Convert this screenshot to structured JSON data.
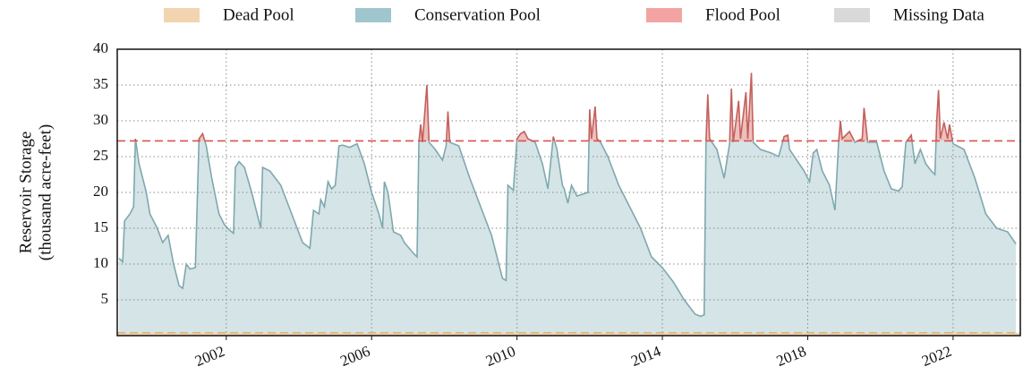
{
  "chart_data": {
    "type": "area",
    "ylabel": [
      "Reservoir Storage",
      "(thousand acre-feet)"
    ],
    "legend": [
      {
        "name": "Dead Pool",
        "color": "#f3d4b0"
      },
      {
        "name": "Conservation Pool",
        "color": "#9fc6cc"
      },
      {
        "name": "Flood Pool",
        "color": "#f4a3a3"
      },
      {
        "name": "Missing Data",
        "color": "#d9d9d9"
      }
    ],
    "fill_color": "#d5e4e7",
    "line_color": "#7ea8ae",
    "flood_fill_color": "#eec0bd",
    "flood_line_color": "#c4605c",
    "flood_pool_level": 27.2,
    "dead_pool_level": 0.4,
    "x": [
      1999.05,
      1999.15,
      1999.2,
      1999.35,
      1999.45,
      1999.5,
      1999.6,
      1999.8,
      1999.9,
      2000.1,
      2000.25,
      2000.4,
      2000.55,
      2000.7,
      2000.8,
      2000.9,
      2001.0,
      2001.15,
      2001.25,
      2001.35,
      2001.45,
      2001.6,
      2001.8,
      2001.95,
      2002.1,
      2002.2,
      2002.25,
      2002.35,
      2002.5,
      2002.7,
      2002.9,
      2002.95,
      2003.0,
      2003.2,
      2003.5,
      2003.8,
      2004.1,
      2004.3,
      2004.4,
      2004.55,
      2004.6,
      2004.7,
      2004.8,
      2004.9,
      2005.0,
      2005.1,
      2005.2,
      2005.4,
      2005.6,
      2005.8,
      2006.0,
      2006.2,
      2006.3,
      2006.35,
      2006.45,
      2006.6,
      2006.8,
      2006.9,
      2007.15,
      2007.25,
      2007.3,
      2007.35,
      2007.4,
      2007.52,
      2007.58,
      2007.75,
      2007.95,
      2008.05,
      2008.1,
      2008.15,
      2008.4,
      2008.7,
      2009.0,
      2009.3,
      2009.5,
      2009.6,
      2009.7,
      2009.75,
      2009.9,
      2010.0,
      2010.1,
      2010.2,
      2010.3,
      2010.5,
      2010.7,
      2010.85,
      2011.0,
      2011.1,
      2011.25,
      2011.3,
      2011.4,
      2011.5,
      2011.65,
      2011.95,
      2012.0,
      2012.05,
      2012.15,
      2012.2,
      2012.3,
      2012.5,
      2012.8,
      2013.1,
      2013.4,
      2013.7,
      2014.0,
      2014.3,
      2014.6,
      2014.9,
      2015.05,
      2015.15,
      2015.2,
      2015.25,
      2015.3,
      2015.5,
      2015.7,
      2015.85,
      2015.9,
      2015.95,
      2016.1,
      2016.15,
      2016.3,
      2016.35,
      2016.45,
      2016.5,
      2016.7,
      2017.0,
      2017.2,
      2017.35,
      2017.45,
      2017.5,
      2017.7,
      2017.9,
      2018.05,
      2018.15,
      2018.25,
      2018.4,
      2018.6,
      2018.75,
      2018.85,
      2018.9,
      2018.95,
      2019.15,
      2019.3,
      2019.5,
      2019.55,
      2019.65,
      2019.9,
      2020.1,
      2020.3,
      2020.5,
      2020.6,
      2020.7,
      2020.85,
      2020.95,
      2021.1,
      2021.25,
      2021.4,
      2021.5,
      2021.55,
      2021.6,
      2021.65,
      2021.75,
      2021.85,
      2021.9,
      2022.0,
      2022.3,
      2022.6,
      2022.9,
      2023.2,
      2023.5,
      2023.73
    ],
    "values": [
      10.8,
      10.3,
      16,
      17,
      18,
      27.5,
      24,
      20,
      17,
      15,
      13,
      14,
      10,
      7,
      6.6,
      10,
      9.3,
      9.5,
      27.5,
      28.2,
      26.5,
      22,
      17,
      15.5,
      14.7,
      14.3,
      23.5,
      24.3,
      23.5,
      20,
      16,
      15,
      23.5,
      23,
      21,
      17,
      13,
      12.2,
      17.5,
      17,
      19,
      18,
      21.5,
      20.5,
      21,
      26.5,
      26.6,
      26.3,
      26.8,
      24,
      20,
      17,
      15,
      21.5,
      20,
      14.5,
      14,
      13,
      11.5,
      11,
      27,
      29.5,
      27,
      35,
      27,
      26,
      24.5,
      26.5,
      31.3,
      27,
      26.5,
      22,
      18,
      14,
      10,
      8,
      7.7,
      21,
      20.3,
      27.5,
      28.2,
      28.5,
      27.5,
      27,
      24,
      20.5,
      27.8,
      26,
      21,
      20.5,
      18.5,
      21,
      19.5,
      20,
      31.6,
      27.5,
      32,
      27.5,
      27,
      25,
      21,
      18,
      15,
      11,
      9.5,
      7.5,
      5,
      3,
      2.7,
      2.9,
      27,
      33.7,
      27.5,
      26,
      22,
      26.8,
      34.5,
      27,
      32.8,
      27.5,
      34,
      27.5,
      36.7,
      27,
      26,
      25.5,
      25,
      27.8,
      28,
      26,
      24.5,
      23,
      21.5,
      25.5,
      26,
      23,
      21,
      17.5,
      27,
      30,
      27.5,
      28.5,
      27,
      27.5,
      31.8,
      27,
      27,
      23,
      20.5,
      20.2,
      20.8,
      27,
      28,
      24,
      26,
      24,
      23,
      22.5,
      30,
      34.3,
      27.5,
      29.8,
      27.5,
      29.5,
      26.8,
      26,
      22,
      17,
      15,
      14.5,
      12.8
    ],
    "xlim": [
      1999,
      2023.85
    ],
    "xticks": [
      2002,
      2006,
      2010,
      2014,
      2018,
      2022
    ],
    "ylim": [
      0,
      40
    ],
    "yticks": [
      5,
      10,
      15,
      20,
      25,
      30,
      35,
      40
    ],
    "grid": true
  }
}
